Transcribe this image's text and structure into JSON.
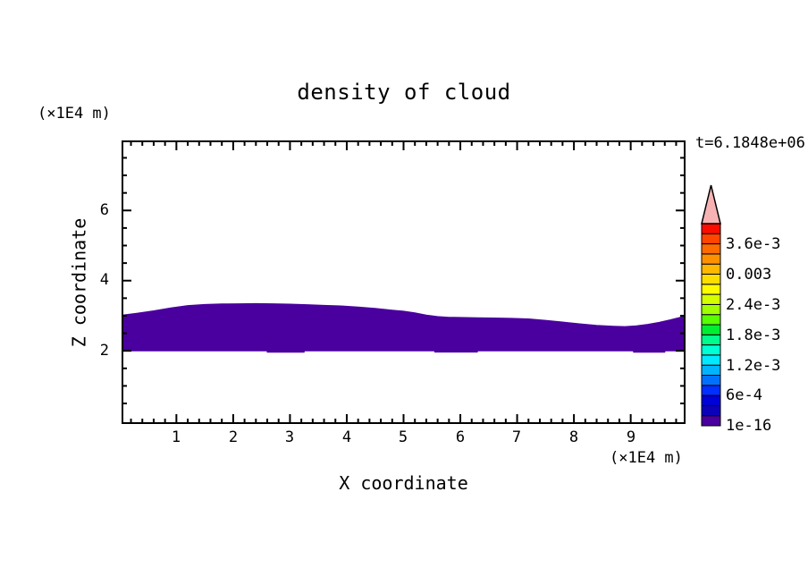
{
  "chart_data": {
    "type": "area",
    "title": "density of cloud",
    "time": "t=6.1848e+06",
    "xlabel": "X coordinate",
    "ylabel": "Z coordinate",
    "x_unit": "(×1E4 m)",
    "z_unit": "(×1E4 m)",
    "xlim": [
      0.05,
      9.95
    ],
    "zlim": [
      -0.06,
      7.97
    ],
    "x_major_ticks": [
      1,
      2,
      3,
      4,
      5,
      6,
      7,
      8,
      9
    ],
    "x_tick_labels": [
      "1",
      "2",
      "3",
      "4",
      "5",
      "6",
      "7",
      "8",
      "9"
    ],
    "x_minor_step": 0.2,
    "z_major_ticks": [
      2,
      4,
      6
    ],
    "z_tick_labels": [
      "2",
      "4",
      "6"
    ],
    "z_minor_step": 0.5,
    "grid": false,
    "band_color": "#4a009e",
    "band_bottom_z": 2.0,
    "band_top_profile": [
      [
        0.05,
        3.02
      ],
      [
        0.3,
        3.07
      ],
      [
        0.6,
        3.14
      ],
      [
        0.9,
        3.22
      ],
      [
        1.2,
        3.29
      ],
      [
        1.5,
        3.32
      ],
      [
        1.8,
        3.335
      ],
      [
        2.1,
        3.34
      ],
      [
        2.4,
        3.345
      ],
      [
        2.7,
        3.34
      ],
      [
        3.0,
        3.33
      ],
      [
        3.3,
        3.315
      ],
      [
        3.6,
        3.295
      ],
      [
        3.9,
        3.28
      ],
      [
        4.2,
        3.25
      ],
      [
        4.5,
        3.21
      ],
      [
        4.8,
        3.16
      ],
      [
        5.0,
        3.13
      ],
      [
        5.2,
        3.08
      ],
      [
        5.4,
        3.02
      ],
      [
        5.6,
        2.975
      ],
      [
        5.8,
        2.955
      ],
      [
        6.0,
        2.95
      ],
      [
        6.3,
        2.94
      ],
      [
        6.6,
        2.935
      ],
      [
        6.9,
        2.925
      ],
      [
        7.2,
        2.91
      ],
      [
        7.5,
        2.87
      ],
      [
        7.8,
        2.82
      ],
      [
        8.1,
        2.77
      ],
      [
        8.4,
        2.725
      ],
      [
        8.7,
        2.7
      ],
      [
        8.9,
        2.69
      ],
      [
        9.1,
        2.71
      ],
      [
        9.3,
        2.755
      ],
      [
        9.5,
        2.81
      ],
      [
        9.7,
        2.885
      ],
      [
        9.85,
        2.945
      ],
      [
        9.95,
        3.0
      ]
    ],
    "band_bottom_path": [
      [
        9.95,
        2.0
      ],
      [
        9.6,
        2.0
      ],
      [
        9.6,
        1.96
      ],
      [
        9.05,
        1.96
      ],
      [
        9.05,
        2.0
      ],
      [
        6.3,
        2.0
      ],
      [
        6.3,
        1.965
      ],
      [
        5.55,
        1.965
      ],
      [
        5.55,
        2.0
      ],
      [
        3.25,
        2.0
      ],
      [
        3.25,
        1.96
      ],
      [
        2.6,
        1.96
      ],
      [
        2.6,
        2.0
      ],
      [
        0.05,
        2.0
      ]
    ],
    "colorbar": {
      "labels_top_to_bottom": [
        "3.6e-3",
        "0.003",
        "2.4e-3",
        "1.8e-3",
        "1.2e-3",
        "6e-4",
        "1e-16"
      ],
      "label_boundary_index_from_bottom": [
        18,
        15,
        12,
        9,
        6,
        3,
        0
      ],
      "segment_colors_bottom_to_top": [
        "#4a009e",
        "#0c00bb",
        "#0000d8",
        "#002fff",
        "#0071ff",
        "#00b3ff",
        "#00e9ff",
        "#00ffd5",
        "#00fb8d",
        "#00ee32",
        "#58ff00",
        "#a0ff00",
        "#d5ff00",
        "#fffb00",
        "#ffdd00",
        "#ffb700",
        "#ff9100",
        "#ff6b00",
        "#ff4500",
        "#fb0c00"
      ],
      "overflow_arrow_color": "#f7b3b3"
    }
  }
}
